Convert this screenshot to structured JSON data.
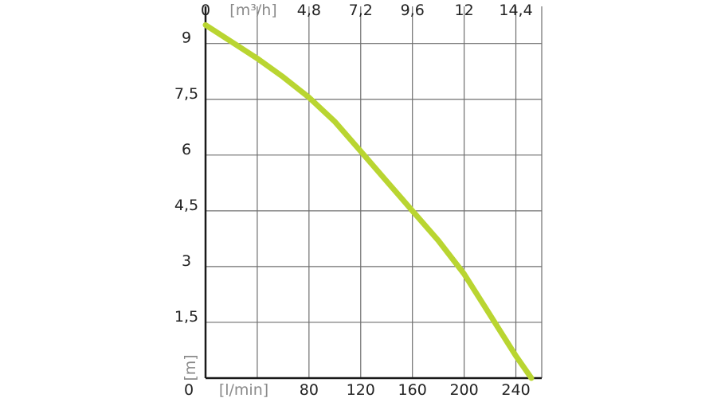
{
  "chart_data": {
    "type": "line",
    "title": "",
    "colors": {
      "curve": "#b9d531",
      "grid": "#6f6f6f",
      "axis": "#1a1a1a",
      "unit_text": "#8a8a8a",
      "tick_text": "#222222"
    },
    "grid": true,
    "x_bottom": {
      "label": "[l/min]",
      "range": [
        0,
        260
      ],
      "ticks": [
        0,
        80,
        120,
        160,
        200,
        240
      ],
      "tick_labels": [
        "0",
        "80",
        "120",
        "160",
        "200",
        "240"
      ],
      "gridlines": [
        40,
        80,
        120,
        160,
        200,
        240,
        260
      ]
    },
    "x_top": {
      "label": "[m³/h]",
      "ticks": [
        0,
        4.8,
        7.2,
        9.6,
        12,
        14.4
      ],
      "tick_labels": [
        "0",
        "4,8",
        "7,2",
        "9,6",
        "12",
        "14,4"
      ]
    },
    "y": {
      "label": "[m]",
      "range": [
        0,
        10
      ],
      "ticks": [
        1.5,
        3,
        4.5,
        6,
        7.5,
        9
      ],
      "tick_labels": [
        "1,5",
        "3",
        "4,5",
        "6",
        "7,5",
        "9"
      ]
    },
    "series": [
      {
        "x": [
          0,
          20,
          40,
          60,
          80,
          100,
          120,
          140,
          160,
          180,
          200,
          220,
          240,
          252
        ],
        "y": [
          9.5,
          9.05,
          8.6,
          8.1,
          7.55,
          6.9,
          6.1,
          5.3,
          4.5,
          3.7,
          2.8,
          1.7,
          0.6,
          0
        ]
      }
    ]
  }
}
